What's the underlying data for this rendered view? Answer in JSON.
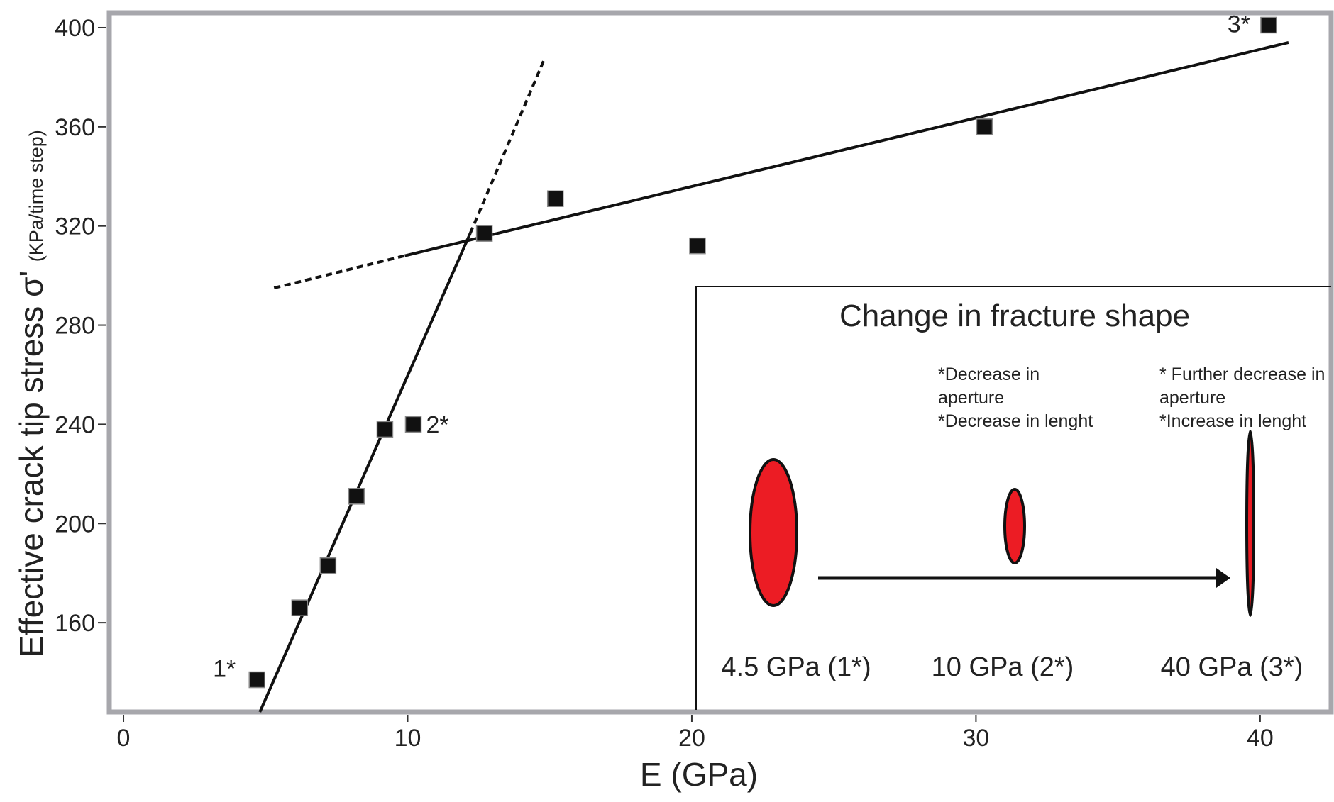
{
  "colors": {
    "frame": "#a7a7ac",
    "ink": "#111111",
    "fracture_fill": "#ec1c24",
    "inset_border": "#111111"
  },
  "chart_data": {
    "type": "scatter",
    "title": "",
    "xlabel": "E (GPa)",
    "ylabel": "Effective crack tip stress σ'",
    "ylabel_unit": "(KPa/time step)",
    "xlim": [
      -0.5,
      42.5
    ],
    "ylim": [
      124,
      406
    ],
    "x_ticks": [
      0,
      10,
      20,
      30,
      40
    ],
    "x_tick_labels": [
      "0",
      "10",
      "20",
      "30",
      "40"
    ],
    "y_ticks": [
      160,
      200,
      240,
      280,
      320,
      360,
      400
    ],
    "y_tick_labels": [
      "160",
      "200",
      "240",
      "280",
      "320",
      "360",
      "400"
    ],
    "grid": false,
    "series": [
      {
        "marker": "square",
        "x": [
          4.7,
          6.2,
          7.2,
          8.2,
          9.2,
          10.2,
          12.7,
          15.2,
          20.2,
          30.3,
          40.3
        ],
        "y": [
          137,
          166,
          183,
          211,
          238,
          240,
          317,
          331,
          312,
          360,
          401
        ]
      }
    ],
    "point_labels": [
      {
        "text": "1*",
        "x": 4.7,
        "y": 137
      },
      {
        "text": "2*",
        "x": 10.2,
        "y": 240
      },
      {
        "text": "3*",
        "x": 40.3,
        "y": 401
      }
    ],
    "trend_lines": [
      {
        "style": "solid",
        "x": [
          4.8,
          12.2
        ],
        "y": [
          124,
          317
        ]
      },
      {
        "style": "dashed",
        "x": [
          12.2,
          14.8
        ],
        "y": [
          317,
          387
        ]
      },
      {
        "style": "solid",
        "x": [
          9.9,
          41.0
        ],
        "y": [
          308,
          394
        ]
      },
      {
        "style": "dashed",
        "x": [
          5.3,
          9.9
        ],
        "y": [
          295,
          308
        ]
      }
    ]
  },
  "inset": {
    "title": "Change in fracture shape",
    "note_2": [
      "*Decrease in",
      "aperture",
      "*Decrease in lenght"
    ],
    "note_3": [
      "* Further decrease in",
      "aperture",
      "*Increase in lenght"
    ],
    "captions": [
      "4.5 GPa (1*)",
      "10 GPa (2*)",
      "40 GPa (3*)"
    ]
  }
}
